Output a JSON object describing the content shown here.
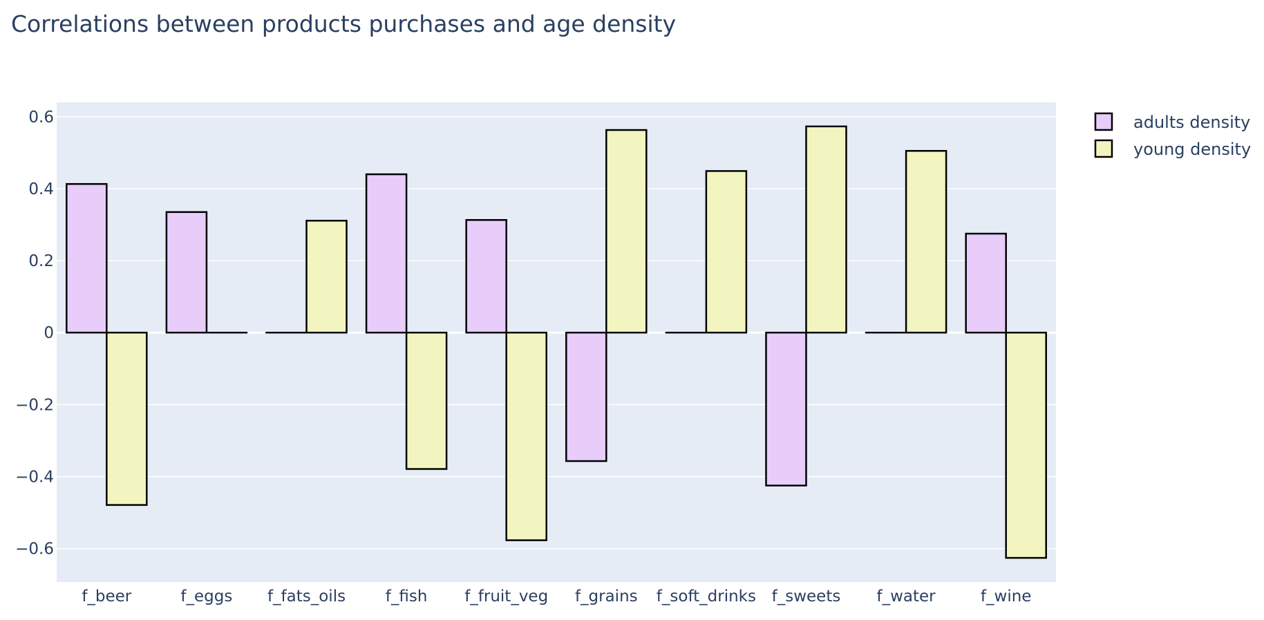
{
  "chart_data": {
    "type": "bar",
    "title": "Correlations between products purchases and age density",
    "xlabel": "",
    "ylabel": "",
    "categories": [
      "f_beer",
      "f_eggs",
      "f_fats_oils",
      "f_fish",
      "f_fruit_veg",
      "f_grains",
      "f_soft_drinks",
      "f_sweets",
      "f_water",
      "f_wine"
    ],
    "series": [
      {
        "name": "adults density",
        "color": "#e8ccf9",
        "values": [
          0.413,
          0.335,
          0.0,
          0.44,
          0.313,
          -0.357,
          0.0,
          -0.425,
          0.0,
          0.275
        ]
      },
      {
        "name": "young density",
        "color": "#f2f5bf",
        "values": [
          -0.479,
          0.0,
          0.311,
          -0.379,
          -0.577,
          0.563,
          0.449,
          0.573,
          0.505,
          -0.626
        ]
      }
    ],
    "ylim": [
      -0.693,
      0.64
    ],
    "yticks": [
      0.6,
      0.4,
      0.2,
      0,
      -0.2,
      -0.4,
      -0.6
    ],
    "ytick_labels": [
      "0.6",
      "0.4",
      "0.2",
      "0",
      "−0.2",
      "−0.4",
      "−0.6"
    ],
    "grid": true,
    "legend_position": "top-right",
    "plot_background": "#e5ecf6",
    "bar_outline": "#000000"
  }
}
